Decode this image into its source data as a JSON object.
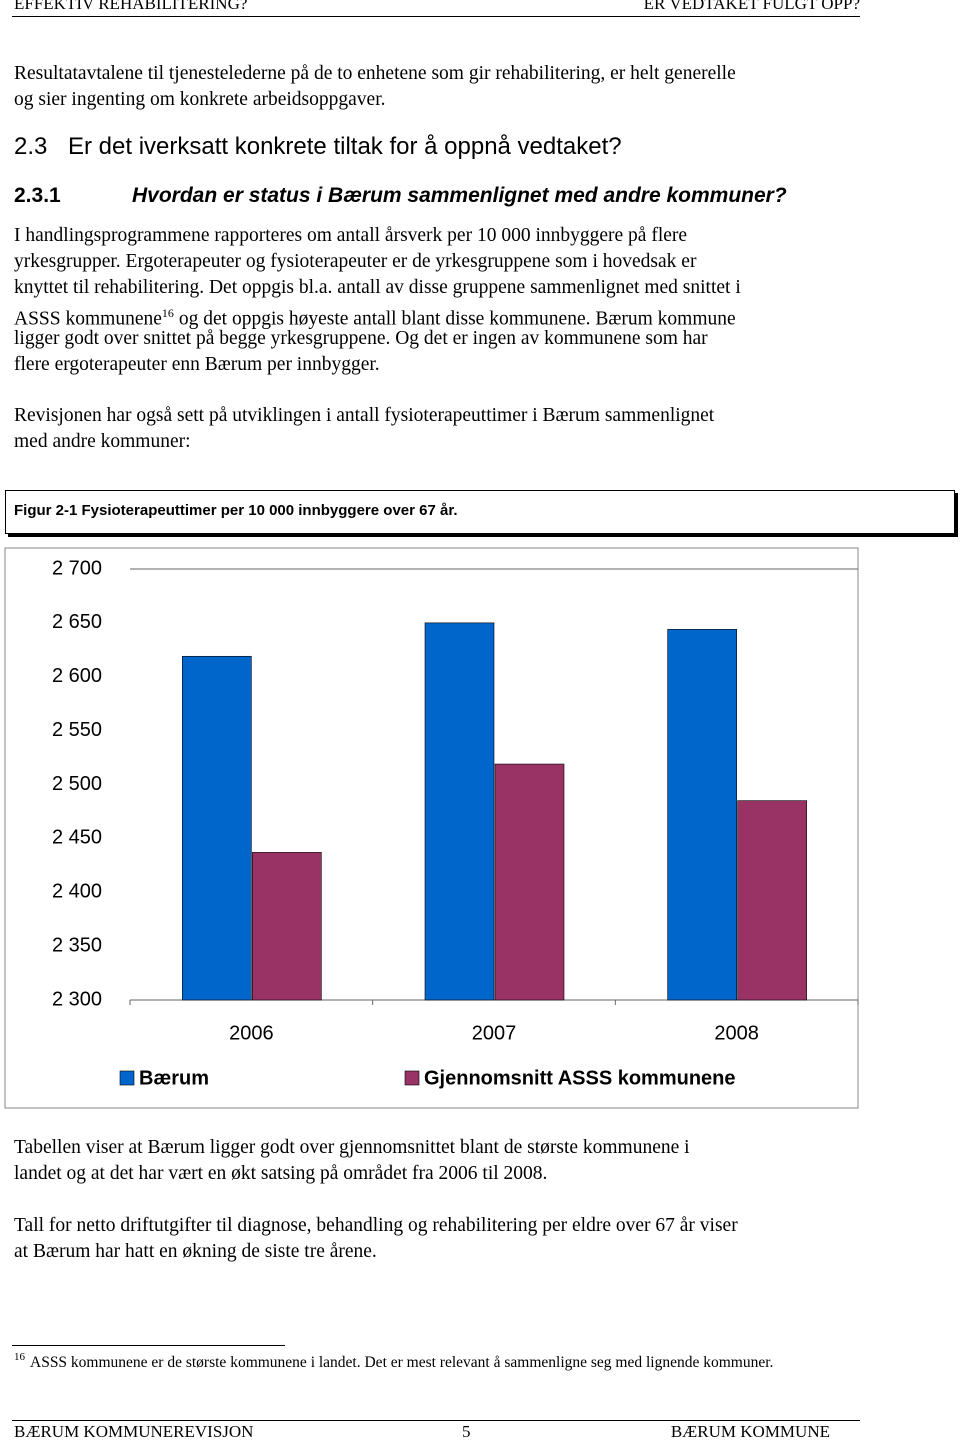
{
  "header": {
    "left": "EFFEKTIV REHABILITERING?",
    "right": "ER VEDTAKET FULGT OPP?"
  },
  "intro_paragraph": {
    "lines": [
      "Resultatavtalene til tjenestelederne på de to enhetene som gir rehabilitering, er helt generelle",
      "og sier ingenting om konkrete arbeidsoppgaver."
    ]
  },
  "section": {
    "number": "2.3",
    "title": "Er det iverksatt konkrete tiltak for å oppnå vedtaket?"
  },
  "subsection": {
    "number": "2.3.1",
    "title": "Hvordan er status i Bærum sammenlignet med andre kommuner?"
  },
  "body_paragraphs": [
    {
      "lines": [
        "I handlingsprogrammene rapporteres om antall årsverk per 10 000 innbyggere på flere",
        "yrkesgrupper. Ergoterapeuter og fysioterapeuter er de yrkesgruppene som i hovedsak er",
        "knyttet til rehabilitering. Det oppgis bl.a. antall av disse gruppene sammenlignet med snittet i",
        {
          "text": "ASSS kommunene",
          "ref": "16",
          "rest": "og det oppgis høyeste antall blant disse kommunene. Bærum kommune"
        },
        "ligger godt over snittet på begge yrkesgruppene. Og det er ingen av kommunene som har",
        "flere ergoterapeuter enn Bærum per innbygger."
      ]
    },
    {
      "lines": [
        "Revisjonen har også sett på utviklingen i antall fysioterapeuttimer i Bærum sammenlignet",
        "med andre kommuner:"
      ]
    }
  ],
  "figure_caption": "Figur 2-1 Fysioterapeuttimer  per 10 000 innbyggere over 67 år.",
  "chart_data": {
    "type": "bar",
    "categories": [
      "2006",
      "2007",
      "2008"
    ],
    "series": [
      {
        "name": "Bærum",
        "color": "#0066cc",
        "values": [
          2619,
          2650,
          2644
        ]
      },
      {
        "name": "Gjennomsnitt ASSS kommunene",
        "color": "#993366",
        "values": [
          2437,
          2519,
          2485
        ]
      }
    ],
    "ylim": [
      2300,
      2700
    ],
    "yticks": [
      {
        "value": 2300,
        "label": "2 300"
      },
      {
        "value": 2350,
        "label": "2 350"
      },
      {
        "value": 2400,
        "label": "2 400"
      },
      {
        "value": 2450,
        "label": "2 450"
      },
      {
        "value": 2500,
        "label": "2 500"
      },
      {
        "value": 2550,
        "label": "2 550"
      },
      {
        "value": 2600,
        "label": "2 600"
      },
      {
        "value": 2650,
        "label": "2 650"
      },
      {
        "value": 2700,
        "label": "2 700"
      }
    ]
  },
  "after_paragraphs": [
    {
      "lines": [
        "Tabellen viser at Bærum ligger godt over gjennomsnittet blant de største kommunene i",
        "landet og at det har vært en økt satsing på området fra 2006 til 2008."
      ]
    },
    {
      "lines": [
        "Tall for netto driftutgifter til diagnose, behandling og rehabilitering per eldre over 67 år viser",
        "at Bærum har hatt en økning de siste tre årene."
      ]
    }
  ],
  "footnote": {
    "number": "16",
    "text": "ASSS kommunene er de største kommunene i landet. Det er mest relevant å sammenligne seg med lignende kommuner."
  },
  "footer": {
    "left": "BÆRUM KOMMUNEREVISJON",
    "page": "5",
    "right": "BÆRUM KOMMUNE"
  }
}
